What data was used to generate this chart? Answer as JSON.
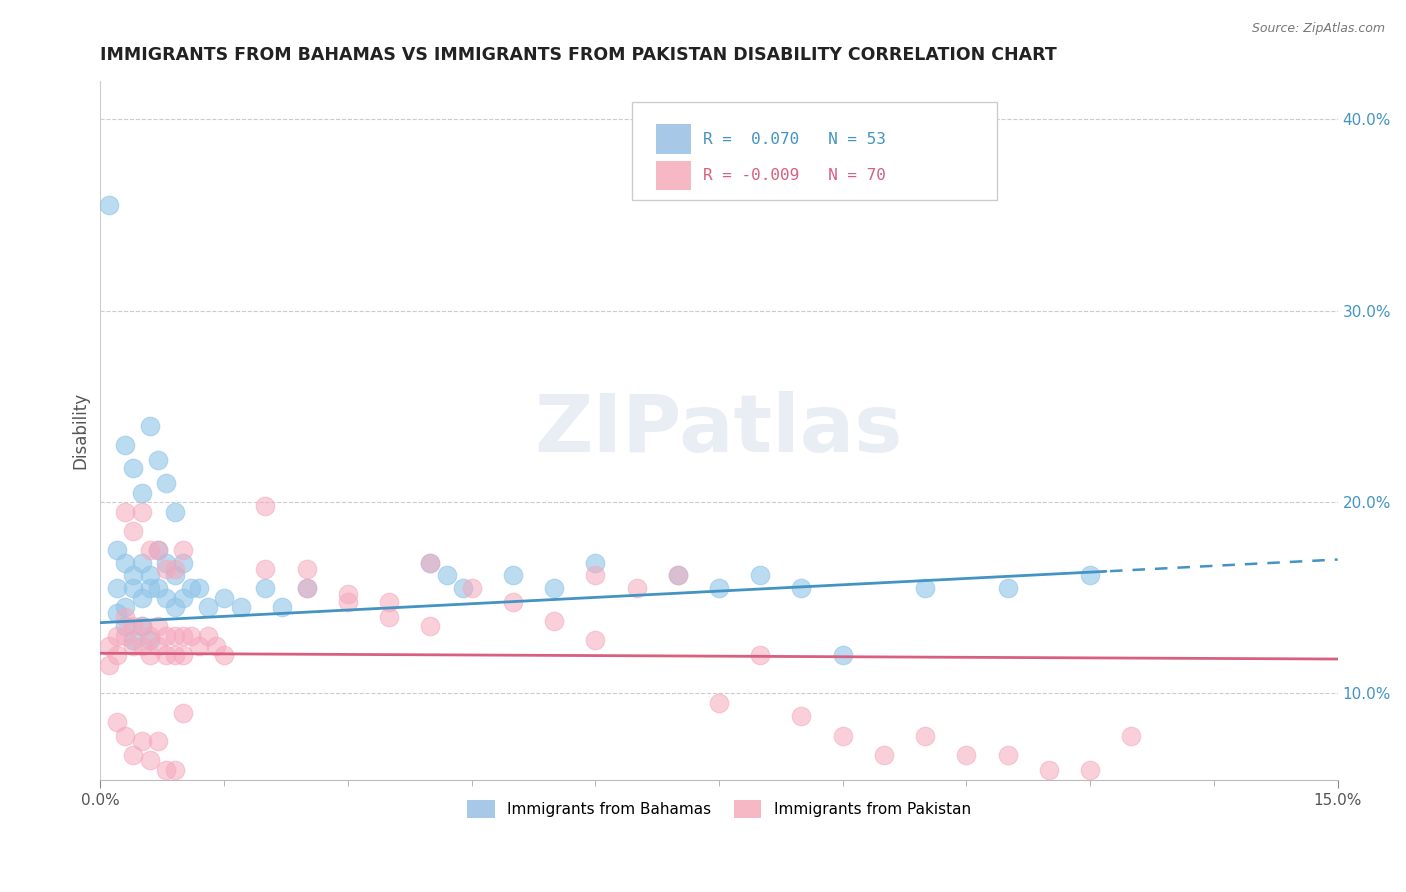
{
  "title": "IMMIGRANTS FROM BAHAMAS VS IMMIGRANTS FROM PAKISTAN DISABILITY CORRELATION CHART",
  "source": "Source: ZipAtlas.com",
  "ylabel": "Disability",
  "xlim": [
    0.0,
    0.15
  ],
  "ylim": [
    0.055,
    0.42
  ],
  "yticks_right": [
    0.1,
    0.2,
    0.3,
    0.4
  ],
  "ytick_right_labels": [
    "10.0%",
    "20.0%",
    "30.0%",
    "40.0%"
  ],
  "color_blue": "#8ec4e8",
  "color_pink": "#f5a8bc",
  "color_blue_line": "#4393c3",
  "color_pink_line": "#d95f7f",
  "color_legend_blue_box": "#a8c8e8",
  "color_legend_pink_box": "#f5b8c4",
  "watermark": "ZIPatlas",
  "blue_intercept": 0.137,
  "blue_slope": 0.22,
  "pink_intercept": 0.121,
  "pink_slope": -0.02,
  "bahamas_x": [
    0.001,
    0.002,
    0.003,
    0.004,
    0.005,
    0.006,
    0.007,
    0.008,
    0.009,
    0.01,
    0.011,
    0.012,
    0.013,
    0.015,
    0.017,
    0.02,
    0.022,
    0.025,
    0.002,
    0.003,
    0.004,
    0.005,
    0.006,
    0.007,
    0.008,
    0.009,
    0.01,
    0.003,
    0.004,
    0.005,
    0.006,
    0.007,
    0.008,
    0.009,
    0.002,
    0.003,
    0.004,
    0.005,
    0.006,
    0.04,
    0.042,
    0.044,
    0.05,
    0.055,
    0.06,
    0.07,
    0.075,
    0.08,
    0.085,
    0.09,
    0.1,
    0.11,
    0.12
  ],
  "bahamas_y": [
    0.355,
    0.155,
    0.145,
    0.155,
    0.15,
    0.155,
    0.155,
    0.15,
    0.145,
    0.15,
    0.155,
    0.155,
    0.145,
    0.15,
    0.145,
    0.155,
    0.145,
    0.155,
    0.175,
    0.168,
    0.162,
    0.168,
    0.162,
    0.175,
    0.168,
    0.162,
    0.168,
    0.23,
    0.218,
    0.205,
    0.24,
    0.222,
    0.21,
    0.195,
    0.142,
    0.135,
    0.128,
    0.135,
    0.128,
    0.168,
    0.162,
    0.155,
    0.162,
    0.155,
    0.168,
    0.162,
    0.155,
    0.162,
    0.155,
    0.12,
    0.155,
    0.155,
    0.162
  ],
  "pakistan_x": [
    0.001,
    0.001,
    0.002,
    0.002,
    0.003,
    0.003,
    0.004,
    0.004,
    0.005,
    0.005,
    0.006,
    0.006,
    0.007,
    0.007,
    0.008,
    0.008,
    0.009,
    0.009,
    0.01,
    0.01,
    0.011,
    0.012,
    0.013,
    0.014,
    0.015,
    0.003,
    0.004,
    0.005,
    0.006,
    0.007,
    0.008,
    0.009,
    0.01,
    0.02,
    0.025,
    0.03,
    0.035,
    0.04,
    0.045,
    0.05,
    0.02,
    0.025,
    0.03,
    0.035,
    0.04,
    0.055,
    0.06,
    0.065,
    0.07,
    0.075,
    0.08,
    0.085,
    0.09,
    0.095,
    0.1,
    0.105,
    0.11,
    0.115,
    0.12,
    0.125,
    0.002,
    0.003,
    0.004,
    0.005,
    0.006,
    0.007,
    0.008,
    0.009,
    0.01,
    0.06
  ],
  "pakistan_y": [
    0.125,
    0.115,
    0.13,
    0.12,
    0.14,
    0.13,
    0.135,
    0.125,
    0.135,
    0.125,
    0.13,
    0.12,
    0.135,
    0.125,
    0.13,
    0.12,
    0.13,
    0.12,
    0.13,
    0.12,
    0.13,
    0.125,
    0.13,
    0.125,
    0.12,
    0.195,
    0.185,
    0.195,
    0.175,
    0.175,
    0.165,
    0.165,
    0.175,
    0.165,
    0.155,
    0.152,
    0.148,
    0.168,
    0.155,
    0.148,
    0.198,
    0.165,
    0.148,
    0.14,
    0.135,
    0.138,
    0.128,
    0.155,
    0.162,
    0.095,
    0.12,
    0.088,
    0.078,
    0.068,
    0.078,
    0.068,
    0.068,
    0.06,
    0.06,
    0.078,
    0.085,
    0.078,
    0.068,
    0.075,
    0.065,
    0.075,
    0.06,
    0.06,
    0.09,
    0.162
  ]
}
